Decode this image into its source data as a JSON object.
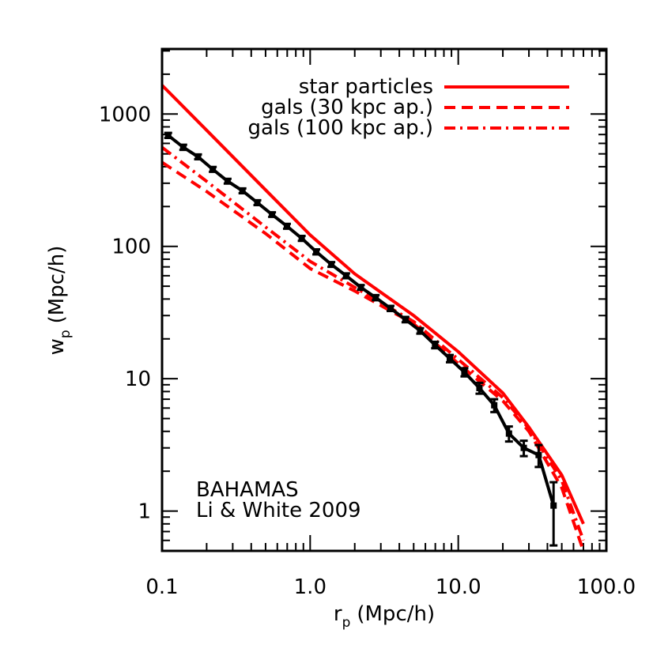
{
  "chart_data": {
    "type": "line",
    "log_x": true,
    "log_y": true,
    "x_label": {
      "main": "r",
      "sub": "p",
      "unit": "(Mpc/h)"
    },
    "y_label": {
      "main": "w",
      "sub": "p",
      "unit": "(Mpc/h)"
    },
    "xlim": [
      0.1,
      100
    ],
    "ylim": [
      0.5,
      3100
    ],
    "xticks": [
      0.1,
      {
        "value": 1,
        "label": "1.0"
      },
      {
        "value": 10,
        "label": "10.0"
      },
      {
        "value": 100,
        "label": "100.0"
      }
    ],
    "yticks": [
      1,
      10,
      100,
      1000
    ],
    "legend": "upper right",
    "series": [
      {
        "name": "star particles",
        "color": "#ff0000",
        "dash": "solid",
        "x": [
          0.1,
          0.2,
          0.5,
          1,
          2,
          5,
          10,
          20,
          30,
          50,
          70
        ],
        "values": [
          1650,
          754,
          267,
          122,
          62,
          30,
          16,
          7.8,
          4.3,
          1.87,
          0.8
        ]
      },
      {
        "name": "gals (30 kpc ap.)",
        "color": "#ff0000",
        "dash": "dashed",
        "x": [
          0.1,
          0.2,
          0.5,
          1,
          2,
          5,
          10,
          20,
          30,
          50,
          70
        ],
        "values": [
          431,
          260,
          125,
          68,
          46,
          26,
          13,
          6.8,
          4.0,
          1.5,
          0.5
        ]
      },
      {
        "name": "gals (100 kpc ap.)",
        "color": "#ff0000",
        "dash": "dashdot",
        "x": [
          0.1,
          0.2,
          0.5,
          1,
          2,
          5,
          10,
          20,
          30,
          50,
          70
        ],
        "values": [
          560,
          310,
          140,
          77,
          49,
          27,
          14,
          7.2,
          4.2,
          1.7,
          0.6
        ]
      }
    ],
    "observed": {
      "color": "#000000",
      "x": [
        0.11,
        0.139,
        0.175,
        0.22,
        0.277,
        0.349,
        0.44,
        0.553,
        0.697,
        0.877,
        1.1,
        1.39,
        1.75,
        2.2,
        2.77,
        3.49,
        4.4,
        5.53,
        6.97,
        8.77,
        11.0,
        13.9,
        17.5,
        22.0,
        27.7,
        34.9,
        44.0
      ],
      "values": [
        690,
        561,
        475,
        382,
        311,
        263,
        214,
        174,
        142,
        115,
        91,
        73,
        60,
        49,
        41,
        34,
        28,
        23,
        18,
        14.2,
        11.2,
        8.5,
        6.3,
        3.85,
        3.0,
        2.65,
        1.1
      ],
      "errors": [
        30,
        25,
        20,
        16,
        13,
        11,
        9,
        7,
        6,
        5,
        4,
        3,
        2.5,
        2,
        1.8,
        1.5,
        1.3,
        1.1,
        1,
        0.9,
        0.8,
        0.8,
        0.7,
        0.5,
        0.4,
        0.5,
        0.55
      ]
    },
    "annotations": [
      {
        "text": "BAHAMAS",
        "color": "#ff0000"
      },
      {
        "text": "Li & White 2009",
        "color": "#000000"
      }
    ]
  }
}
